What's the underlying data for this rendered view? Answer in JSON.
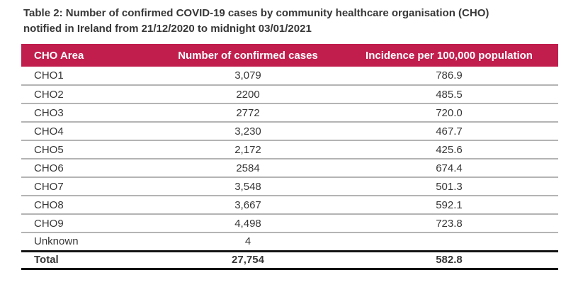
{
  "document": {
    "title_line1": "Table 2: Number of confirmed COVID-19 cases by community healthcare organisation (CHO)",
    "title_line2": "notified in Ireland from 21/12/2020 to midnight 03/01/2021"
  },
  "colors": {
    "header_bg": "#C11D4D",
    "header_text": "#FFFFFF",
    "body_text": "#373737",
    "row_divider": "#B4B4B4",
    "total_rule": "#141414",
    "page_bg": "#FFFFFF"
  },
  "table": {
    "columns": [
      {
        "label": "CHO Area"
      },
      {
        "label": "Number of confirmed cases"
      },
      {
        "label": "Incidence per 100,000 population"
      }
    ],
    "rows": [
      {
        "area": "CHO1",
        "cases": "3,079",
        "incidence": "786.9"
      },
      {
        "area": "CHO2",
        "cases": "2200",
        "incidence": "485.5"
      },
      {
        "area": "CHO3",
        "cases": "2772",
        "incidence": "720.0"
      },
      {
        "area": "CHO4",
        "cases": "3,230",
        "incidence": "467.7"
      },
      {
        "area": "CHO5",
        "cases": "2,172",
        "incidence": "425.6"
      },
      {
        "area": "CHO6",
        "cases": "2584",
        "incidence": "674.4"
      },
      {
        "area": "CHO7",
        "cases": "3,548",
        "incidence": "501.3"
      },
      {
        "area": "CHO8",
        "cases": "3,667",
        "incidence": "592.1"
      },
      {
        "area": "CHO9",
        "cases": "4,498",
        "incidence": "723.8"
      },
      {
        "area": "Unknown",
        "cases": "4",
        "incidence": ""
      }
    ],
    "total_row": {
      "area": "Total",
      "cases": "27,754",
      "incidence": "582.8"
    }
  }
}
